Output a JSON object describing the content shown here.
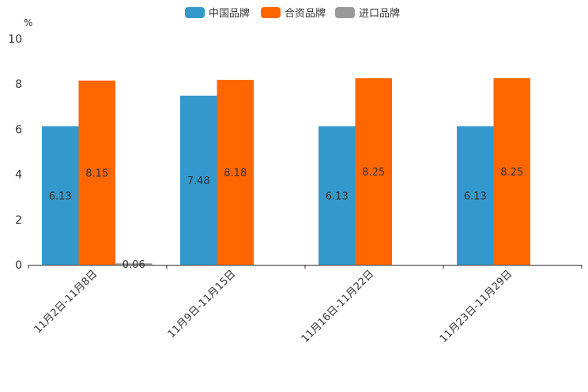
{
  "chart_data": {
    "type": "bar",
    "ylabel": "%",
    "ylim": [
      0,
      10
    ],
    "yticks": [
      0,
      2,
      4,
      6,
      8,
      10
    ],
    "categories": [
      "11月2日-11月8日",
      "11月9日-11月15日",
      "11月16日-11月22日",
      "11月23日-11月29日"
    ],
    "series": [
      {
        "name": "中国品牌",
        "color": "#3399cc",
        "values": [
          6.13,
          7.48,
          6.13,
          6.13
        ]
      },
      {
        "name": "合资品牌",
        "color": "#ff6600",
        "values": [
          8.15,
          8.18,
          8.25,
          8.25
        ]
      },
      {
        "name": "进口品牌",
        "color": "#999999",
        "values": [
          0.06,
          null,
          null,
          null
        ]
      }
    ],
    "data_labels": [
      [
        "6.13",
        "8.15",
        "0.06"
      ],
      [
        "7.48",
        "8.18",
        ""
      ],
      [
        "6.13",
        "8.25",
        ""
      ],
      [
        "6.13",
        "8.25",
        ""
      ]
    ],
    "legend_position": "top-center"
  }
}
